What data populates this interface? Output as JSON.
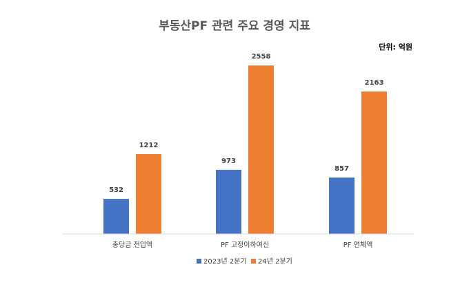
{
  "chart_data": {
    "type": "bar",
    "title": "부동산PF 관련 주요 경영 지표",
    "unit_label": "단위: 억원",
    "categories": [
      "충당금 전입액",
      "PF 고정이하여신",
      "PF 연체액"
    ],
    "series": [
      {
        "name": "2023년 2분기",
        "values": [
          532,
          973,
          857
        ],
        "color": "#4472C4"
      },
      {
        "name": "24년 2분기",
        "values": [
          1212,
          2558,
          2163
        ],
        "color": "#ED7D31"
      }
    ],
    "ylim": [
      0,
      2800
    ],
    "grid": false,
    "legend_position": "bottom",
    "axis_color": "#D9D9D9"
  }
}
